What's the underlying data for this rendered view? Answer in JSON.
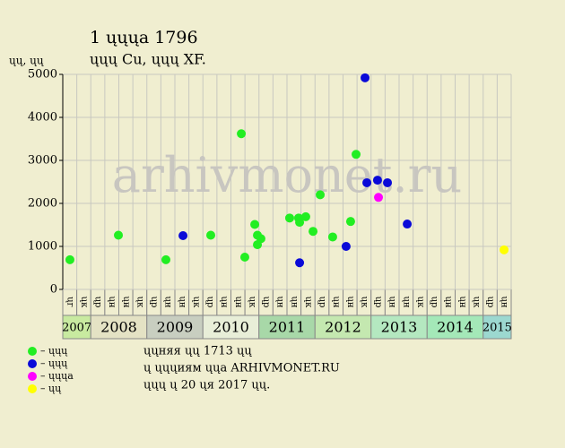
{
  "chart_data": {
    "type": "scatter",
    "title": "1 ųųųа 1796",
    "subtitle": "ųųų Cu, ųųų XF.",
    "y_label": "ųų, ųų",
    "watermark": "arhivmonet.ru",
    "categories": [
      "ųг",
      "ųк",
      "ųр",
      "ųн",
      "ųн",
      "ųк",
      "ųр",
      "ųн",
      "ųн",
      "ųк",
      "ųр",
      "ųн",
      "ųн",
      "ųк",
      "ųр",
      "ųн",
      "ųн",
      "ųк",
      "ųр",
      "ųн",
      "ųн",
      "ųк",
      "ųр",
      "ųн",
      "ųн",
      "ųк",
      "ųр",
      "ųн",
      "ųн",
      "ųк",
      "ųр",
      "ųн"
    ],
    "years": [
      "2007",
      "2008",
      "2009",
      "2010",
      "2011",
      "2012",
      "2013",
      "2014",
      "2015"
    ],
    "xlim": [
      0,
      32
    ],
    "ylim": [
      0,
      5000
    ],
    "yticks": [
      0,
      1000,
      2000,
      3000,
      4000,
      5000
    ],
    "grid": true,
    "series": [
      {
        "name": "– ųųų",
        "color": "#22ee22",
        "x": [
          0.51,
          3.97,
          7.36,
          10.56,
          12.74,
          12.99,
          13.7,
          13.89,
          13.89,
          14.14,
          16.19,
          16.83,
          16.9,
          17.34,
          17.86,
          18.37,
          19.26,
          20.54,
          20.93
        ],
        "values": [
          690,
          1260,
          690,
          1260,
          3620,
          750,
          1510,
          1260,
          1040,
          1180,
          1660,
          1660,
          1560,
          1690,
          1350,
          2200,
          1220,
          1580,
          3140
        ]
      },
      {
        "name": "– ųųų",
        "color": "#0a0ad8",
        "x": [
          8.58,
          16.9,
          20.22,
          21.57,
          21.7,
          22.46,
          23.17,
          24.58
        ],
        "values": [
          1250,
          620,
          1000,
          4920,
          2480,
          2540,
          2480,
          1520
        ]
      },
      {
        "name": "– ųųųа",
        "color": "#ff00ff",
        "x": [
          22.53
        ],
        "values": [
          2140
        ]
      },
      {
        "name": "– ųų",
        "color": "#ffff00",
        "x": [
          31.49
        ],
        "values": [
          920
        ]
      }
    ],
    "notes": [
      "ųųняя ųų 1713 ųų",
      "ų ųųųиям ųųа ARHIVMONET.RU",
      "ųųų ų 20 ųя 2017 ųų."
    ]
  }
}
